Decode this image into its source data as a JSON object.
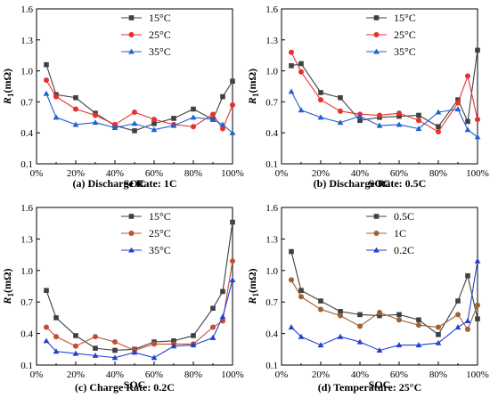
{
  "figure": {
    "x_tick_labels": [
      "0%",
      "20%",
      "40%",
      "60%",
      "80%",
      "100%"
    ],
    "y_tick_labels": [
      "0.1",
      "0.4",
      "0.7",
      "1.0",
      "1.3",
      "1.6"
    ]
  },
  "chart_data": [
    {
      "type": "line",
      "caption": "(a) Discharge Rate: 1C",
      "xlabel": "SOC",
      "ylabel_main": "R",
      "ylabel_sub": "1",
      "ylabel_unit": "(mΩ)",
      "xlim": [
        0,
        100
      ],
      "ylim": [
        0.1,
        1.6
      ],
      "legend_position": "top-right",
      "series": [
        {
          "name": "15°C",
          "color": "#404040",
          "marker": "square",
          "x": [
            5,
            10,
            20,
            30,
            40,
            50,
            60,
            70,
            80,
            90,
            95,
            100
          ],
          "values": [
            1.06,
            0.77,
            0.74,
            0.59,
            0.47,
            0.42,
            0.49,
            0.54,
            0.63,
            0.53,
            0.75,
            0.9
          ]
        },
        {
          "name": "25°C",
          "color": "#e83030",
          "marker": "circle",
          "x": [
            5,
            10,
            20,
            30,
            40,
            50,
            60,
            70,
            80,
            90,
            95,
            100
          ],
          "values": [
            0.91,
            0.75,
            0.63,
            0.57,
            0.48,
            0.6,
            0.53,
            0.48,
            0.46,
            0.58,
            0.44,
            0.67
          ]
        },
        {
          "name": "35°C",
          "color": "#2060d0",
          "marker": "triangle",
          "x": [
            5,
            10,
            20,
            30,
            40,
            50,
            60,
            70,
            80,
            90,
            95,
            100
          ],
          "values": [
            0.78,
            0.55,
            0.48,
            0.5,
            0.45,
            0.49,
            0.43,
            0.47,
            0.55,
            0.53,
            0.48,
            0.4
          ]
        }
      ]
    },
    {
      "type": "line",
      "caption": "(b) Discharge Rate: 0.5C",
      "xlabel": "SOC",
      "ylabel_main": "R",
      "ylabel_sub": "1",
      "ylabel_unit": "(mΩ)",
      "xlim": [
        0,
        100
      ],
      "ylim": [
        0.1,
        1.6
      ],
      "legend_position": "top-right",
      "series": [
        {
          "name": "15°C",
          "color": "#404040",
          "marker": "square",
          "x": [
            5,
            10,
            20,
            30,
            40,
            50,
            60,
            70,
            80,
            90,
            95,
            100
          ],
          "values": [
            1.05,
            1.07,
            0.79,
            0.74,
            0.52,
            0.55,
            0.56,
            0.57,
            0.46,
            0.72,
            0.51,
            1.2
          ]
        },
        {
          "name": "25°C",
          "color": "#e83030",
          "marker": "circle",
          "x": [
            5,
            10,
            20,
            30,
            40,
            50,
            60,
            70,
            80,
            90,
            95,
            100
          ],
          "values": [
            1.18,
            0.99,
            0.72,
            0.61,
            0.58,
            0.57,
            0.59,
            0.52,
            0.41,
            0.69,
            0.95,
            0.53
          ]
        },
        {
          "name": "35°C",
          "color": "#2060d0",
          "marker": "triangle",
          "x": [
            5,
            10,
            20,
            30,
            40,
            50,
            60,
            70,
            80,
            90,
            95,
            100
          ],
          "values": [
            0.8,
            0.62,
            0.55,
            0.5,
            0.56,
            0.47,
            0.48,
            0.44,
            0.6,
            0.63,
            0.43,
            0.36
          ]
        }
      ]
    },
    {
      "type": "line",
      "caption": "(c) Charge Rate: 0.2C",
      "xlabel": "SOC",
      "ylabel_main": "R",
      "ylabel_sub": "1",
      "ylabel_unit": "(mΩ)",
      "xlim": [
        0,
        100
      ],
      "ylim": [
        0.1,
        1.6
      ],
      "legend_position": "top-right",
      "series": [
        {
          "name": "15°C",
          "color": "#404040",
          "marker": "square",
          "x": [
            5,
            10,
            20,
            30,
            40,
            50,
            60,
            70,
            80,
            90,
            95,
            100
          ],
          "values": [
            0.81,
            0.55,
            0.38,
            0.26,
            0.24,
            0.25,
            0.32,
            0.33,
            0.38,
            0.64,
            0.8,
            1.46
          ]
        },
        {
          "name": "25°C",
          "color": "#c05030",
          "marker": "circle",
          "x": [
            5,
            10,
            20,
            30,
            40,
            50,
            60,
            70,
            80,
            90,
            95,
            100
          ],
          "values": [
            0.46,
            0.37,
            0.28,
            0.37,
            0.32,
            0.24,
            0.3,
            0.3,
            0.3,
            0.46,
            0.52,
            1.09
          ]
        },
        {
          "name": "35°C",
          "color": "#2040d0",
          "marker": "triangle",
          "x": [
            5,
            10,
            20,
            30,
            40,
            50,
            60,
            70,
            80,
            90,
            95,
            100
          ],
          "values": [
            0.33,
            0.23,
            0.21,
            0.19,
            0.17,
            0.22,
            0.17,
            0.28,
            0.29,
            0.36,
            0.56,
            0.91
          ]
        }
      ]
    },
    {
      "type": "line",
      "caption": "(d) Temperature: 25°C",
      "xlabel": "SOC",
      "ylabel_main": "R",
      "ylabel_sub": "1",
      "ylabel_unit": "(mΩ)",
      "xlim": [
        0,
        100
      ],
      "ylim": [
        0.1,
        1.6
      ],
      "legend_position": "top-right",
      "series": [
        {
          "name": "0.5C",
          "color": "#404040",
          "marker": "square",
          "x": [
            5,
            10,
            20,
            30,
            40,
            50,
            60,
            70,
            80,
            90,
            95,
            100
          ],
          "values": [
            1.18,
            0.81,
            0.71,
            0.61,
            0.58,
            0.57,
            0.58,
            0.53,
            0.39,
            0.71,
            0.95,
            0.54
          ]
        },
        {
          "name": "1C",
          "color": "#a06030",
          "marker": "circle",
          "x": [
            5,
            10,
            20,
            30,
            40,
            50,
            60,
            70,
            80,
            90,
            95,
            100
          ],
          "values": [
            0.91,
            0.75,
            0.63,
            0.57,
            0.47,
            0.6,
            0.53,
            0.48,
            0.46,
            0.58,
            0.44,
            0.67
          ]
        },
        {
          "name": "0.2C",
          "color": "#2040d0",
          "marker": "triangle",
          "x": [
            5,
            10,
            20,
            30,
            40,
            50,
            60,
            70,
            80,
            90,
            95,
            100
          ],
          "values": [
            0.46,
            0.37,
            0.29,
            0.37,
            0.32,
            0.24,
            0.29,
            0.29,
            0.31,
            0.46,
            0.52,
            1.09
          ]
        }
      ]
    }
  ]
}
